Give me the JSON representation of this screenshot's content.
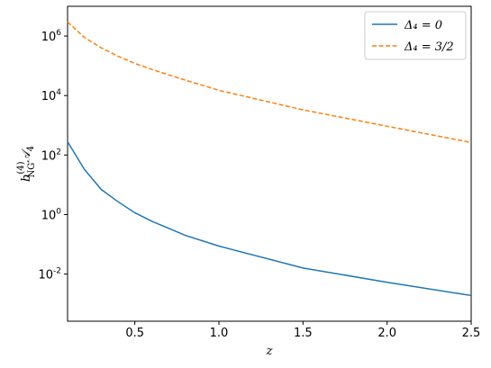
{
  "chart_data": {
    "type": "line",
    "x": [
      0.1,
      0.2,
      0.3,
      0.4,
      0.5,
      0.6,
      0.8,
      1.0,
      1.5,
      2.0,
      2.5
    ],
    "series": [
      {
        "name": "Δ₄ = 0",
        "color": "#1f77b4",
        "dash": "solid",
        "values": [
          280,
          33,
          7,
          2.7,
          1.15,
          0.6,
          0.2,
          0.087,
          0.016,
          0.0053,
          0.0019
        ]
      },
      {
        "name": "Δ₄ = 3/2",
        "color": "#ff7f0e",
        "dash": "dashed",
        "values": [
          3000000,
          900000,
          400000,
          210000,
          120000,
          76000,
          33000,
          15000,
          3300,
          930,
          265
        ]
      }
    ],
    "xlabel": "z",
    "ylabel": [
      "b",
      "(4)",
      "NG",
      "𝒜",
      "4"
    ],
    "xlim": [
      0.1,
      2.5
    ],
    "xticks": [
      0.5,
      1.0,
      1.5,
      2.0,
      2.5
    ],
    "ylim": [
      0.00026,
      10000000
    ],
    "yscale": "log",
    "yticks": [
      {
        "value": 0.01,
        "label": "10",
        "exponent": "-2"
      },
      {
        "value": 1,
        "label": "10",
        "exponent": "0"
      },
      {
        "value": 100,
        "label": "10",
        "exponent": "2"
      },
      {
        "value": 10000,
        "label": "10",
        "exponent": "4"
      },
      {
        "value": 1000000,
        "label": "10",
        "exponent": "6"
      }
    ],
    "legend": "upper right"
  }
}
